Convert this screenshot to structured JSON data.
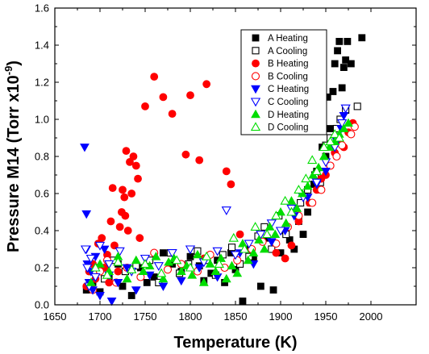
{
  "chart_data": {
    "type": "scatter",
    "title": "",
    "xlabel": "Temperature (K)",
    "ylabel_main": "Pressure M14 (Torr x10",
    "ylabel_exp": "-9",
    "ylabel_close": ")",
    "xlim": [
      1650,
      2050
    ],
    "ylim": [
      0.0,
      1.6
    ],
    "xticks": [
      1650,
      1700,
      1750,
      1800,
      1850,
      1900,
      1950,
      2000
    ],
    "yticks": [
      0.0,
      0.2,
      0.4,
      0.6,
      0.8,
      1.0,
      1.2,
      1.4,
      1.6
    ],
    "ytick_labels": [
      "0.0",
      "0.2",
      "0.4",
      "0.6",
      "0.8",
      "1.0",
      "1.2",
      "1.4",
      "1.6"
    ],
    "grid": false,
    "legend_position": "top-right",
    "series": [
      {
        "name": "A Heating",
        "marker": "square",
        "filled": true,
        "color": "#000000",
        "points": [
          [
            1685,
            0.08
          ],
          [
            1692,
            0.12
          ],
          [
            1700,
            0.07
          ],
          [
            1710,
            0.15
          ],
          [
            1720,
            0.22
          ],
          [
            1725,
            0.1
          ],
          [
            1735,
            0.05
          ],
          [
            1745,
            0.2
          ],
          [
            1752,
            0.12
          ],
          [
            1760,
            0.15
          ],
          [
            1770,
            0.28
          ],
          [
            1780,
            0.22
          ],
          [
            1790,
            0.18
          ],
          [
            1800,
            0.26
          ],
          [
            1810,
            0.21
          ],
          [
            1815,
            0.13
          ],
          [
            1823,
            0.17
          ],
          [
            1830,
            0.24
          ],
          [
            1838,
            0.12
          ],
          [
            1845,
            0.28
          ],
          [
            1850,
            0.19
          ],
          [
            1858,
            0.02
          ],
          [
            1862,
            0.3
          ],
          [
            1870,
            0.25
          ],
          [
            1878,
            0.1
          ],
          [
            1885,
            0.36
          ],
          [
            1892,
            0.08
          ],
          [
            1900,
            0.28
          ],
          [
            1905,
            0.4
          ],
          [
            1910,
            0.35
          ],
          [
            1915,
            0.3
          ],
          [
            1920,
            0.45
          ],
          [
            1925,
            0.38
          ],
          [
            1930,
            0.5
          ],
          [
            1933,
            0.55
          ],
          [
            1937,
            0.65
          ],
          [
            1940,
            0.72
          ],
          [
            1943,
            0.62
          ],
          [
            1946,
            0.85
          ],
          [
            1950,
            0.8
          ],
          [
            1952,
            1.12
          ],
          [
            1955,
            0.95
          ],
          [
            1958,
            1.15
          ],
          [
            1960,
            1.3
          ],
          [
            1963,
            1.37
          ],
          [
            1965,
            1.42
          ],
          [
            1968,
            1.17
          ],
          [
            1970,
            1.28
          ],
          [
            1972,
            1.32
          ],
          [
            1974,
            1.42
          ],
          [
            1978,
            1.3
          ],
          [
            1990,
            1.44
          ]
        ]
      },
      {
        "name": "A Cooling",
        "marker": "square",
        "filled": false,
        "color": "#000000",
        "points": [
          [
            1690,
            0.1
          ],
          [
            1698,
            0.2
          ],
          [
            1705,
            0.14
          ],
          [
            1715,
            0.24
          ],
          [
            1728,
            0.18
          ],
          [
            1740,
            0.21
          ],
          [
            1755,
            0.24
          ],
          [
            1765,
            0.12
          ],
          [
            1778,
            0.28
          ],
          [
            1788,
            0.17
          ],
          [
            1798,
            0.22
          ],
          [
            1808,
            0.29
          ],
          [
            1818,
            0.24
          ],
          [
            1828,
            0.16
          ],
          [
            1836,
            0.27
          ],
          [
            1846,
            0.31
          ],
          [
            1855,
            0.22
          ],
          [
            1865,
            0.26
          ],
          [
            1875,
            0.37
          ],
          [
            1882,
            0.42
          ],
          [
            1890,
            0.3
          ],
          [
            1898,
            0.48
          ],
          [
            1906,
            0.38
          ],
          [
            1914,
            0.52
          ],
          [
            1922,
            0.55
          ],
          [
            1930,
            0.62
          ],
          [
            1938,
            0.7
          ],
          [
            1944,
            0.66
          ],
          [
            1950,
            0.86
          ],
          [
            1955,
            0.9
          ],
          [
            1962,
            0.95
          ],
          [
            1966,
            1.0
          ],
          [
            1972,
            1.05
          ],
          [
            1985,
            1.07
          ]
        ]
      },
      {
        "name": "B Heating",
        "marker": "circle",
        "filled": true,
        "color": "#ff0000",
        "points": [
          [
            1685,
            0.1
          ],
          [
            1688,
            0.18
          ],
          [
            1692,
            0.22
          ],
          [
            1695,
            0.14
          ],
          [
            1698,
            0.33
          ],
          [
            1702,
            0.36
          ],
          [
            1705,
            0.2
          ],
          [
            1708,
            0.27
          ],
          [
            1710,
            0.12
          ],
          [
            1712,
            0.45
          ],
          [
            1714,
            0.63
          ],
          [
            1716,
            0.32
          ],
          [
            1720,
            0.18
          ],
          [
            1722,
            0.42
          ],
          [
            1724,
            0.5
          ],
          [
            1725,
            0.62
          ],
          [
            1727,
            0.58
          ],
          [
            1728,
            0.48
          ],
          [
            1729,
            0.83
          ],
          [
            1731,
            0.4
          ],
          [
            1733,
            0.77
          ],
          [
            1735,
            0.6
          ],
          [
            1737,
            0.8
          ],
          [
            1740,
            0.75
          ],
          [
            1742,
            0.68
          ],
          [
            1744,
            0.36
          ],
          [
            1750,
            1.07
          ],
          [
            1760,
            1.23
          ],
          [
            1770,
            1.12
          ],
          [
            1780,
            1.03
          ],
          [
            1795,
            0.81
          ],
          [
            1800,
            1.13
          ],
          [
            1810,
            0.78
          ],
          [
            1815,
            0.25
          ],
          [
            1818,
            1.19
          ],
          [
            1840,
            0.72
          ],
          [
            1845,
            0.65
          ],
          [
            1855,
            0.38
          ],
          [
            1895,
            0.28
          ],
          [
            1905,
            0.25
          ],
          [
            1912,
            0.32
          ],
          [
            1920,
            0.45
          ],
          [
            1932,
            0.55
          ],
          [
            1940,
            0.62
          ],
          [
            1945,
            0.68
          ],
          [
            1950,
            0.7
          ],
          [
            1955,
            0.75
          ],
          [
            1960,
            0.82
          ],
          [
            1965,
            0.88
          ],
          [
            1970,
            0.85
          ],
          [
            1975,
            0.93
          ],
          [
            1980,
            0.98
          ]
        ]
      },
      {
        "name": "B Cooling",
        "marker": "circle",
        "filled": false,
        "color": "#ff0000",
        "points": [
          [
            1692,
            0.08
          ],
          [
            1700,
            0.18
          ],
          [
            1708,
            0.24
          ],
          [
            1718,
            0.12
          ],
          [
            1730,
            0.2
          ],
          [
            1745,
            0.15
          ],
          [
            1760,
            0.28
          ],
          [
            1775,
            0.19
          ],
          [
            1790,
            0.22
          ],
          [
            1808,
            0.18
          ],
          [
            1822,
            0.27
          ],
          [
            1838,
            0.2
          ],
          [
            1852,
            0.24
          ],
          [
            1868,
            0.3
          ],
          [
            1880,
            0.34
          ],
          [
            1895,
            0.33
          ],
          [
            1908,
            0.42
          ],
          [
            1920,
            0.48
          ],
          [
            1935,
            0.55
          ],
          [
            1945,
            0.62
          ],
          [
            1955,
            0.75
          ],
          [
            1962,
            0.8
          ],
          [
            1968,
            0.86
          ],
          [
            1978,
            0.92
          ],
          [
            1982,
            0.96
          ]
        ]
      },
      {
        "name": "C Heating",
        "marker": "triangle-down",
        "filled": true,
        "color": "#0000ff",
        "points": [
          [
            1683,
            0.85
          ],
          [
            1685,
            0.3
          ],
          [
            1685,
            0.49
          ],
          [
            1686,
            0.22
          ],
          [
            1688,
            0.12
          ],
          [
            1690,
            0.18
          ],
          [
            1692,
            0.08
          ],
          [
            1695,
            0.26
          ],
          [
            1700,
            0.05
          ],
          [
            1705,
            0.3
          ],
          [
            1710,
            0.16
          ],
          [
            1713,
            0.02
          ],
          [
            1720,
            0.12
          ],
          [
            1730,
            0.2
          ],
          [
            1740,
            0.08
          ],
          [
            1755,
            0.16
          ],
          [
            1770,
            0.1
          ],
          [
            1790,
            0.13
          ],
          [
            1810,
            0.2
          ],
          [
            1830,
            0.15
          ],
          [
            1855,
            0.28
          ],
          [
            1870,
            0.22
          ],
          [
            1890,
            0.34
          ],
          [
            1905,
            0.4
          ],
          [
            1915,
            0.48
          ],
          [
            1930,
            0.58
          ],
          [
            1940,
            0.65
          ],
          [
            1950,
            0.72
          ],
          [
            1958,
            0.86
          ],
          [
            1962,
            0.88
          ],
          [
            1967,
            0.95
          ],
          [
            1970,
            1.02
          ]
        ]
      },
      {
        "name": "C Cooling",
        "marker": "triangle-down",
        "filled": false,
        "color": "#0000ff",
        "points": [
          [
            1684,
            0.3
          ],
          [
            1686,
            0.2
          ],
          [
            1688,
            0.1
          ],
          [
            1690,
            0.25
          ],
          [
            1695,
            0.15
          ],
          [
            1700,
            0.32
          ],
          [
            1710,
            0.22
          ],
          [
            1722,
            0.29
          ],
          [
            1735,
            0.18
          ],
          [
            1750,
            0.25
          ],
          [
            1765,
            0.21
          ],
          [
            1780,
            0.28
          ],
          [
            1800,
            0.3
          ],
          [
            1815,
            0.23
          ],
          [
            1830,
            0.29
          ],
          [
            1840,
            0.51
          ],
          [
            1850,
            0.27
          ],
          [
            1865,
            0.33
          ],
          [
            1878,
            0.38
          ],
          [
            1890,
            0.44
          ],
          [
            1900,
            0.4
          ],
          [
            1912,
            0.52
          ],
          [
            1925,
            0.58
          ],
          [
            1940,
            0.66
          ],
          [
            1950,
            0.77
          ],
          [
            1960,
            0.85
          ],
          [
            1968,
            0.98
          ],
          [
            1972,
            1.06
          ]
        ]
      },
      {
        "name": "D Heating",
        "marker": "triangle-up",
        "filled": true,
        "color": "#00dd00",
        "points": [
          [
            1690,
            0.12
          ],
          [
            1700,
            0.22
          ],
          [
            1710,
            0.18
          ],
          [
            1720,
            0.26
          ],
          [
            1730,
            0.14
          ],
          [
            1740,
            0.24
          ],
          [
            1748,
            0.18
          ],
          [
            1755,
            0.21
          ],
          [
            1762,
            0.26
          ],
          [
            1770,
            0.14
          ],
          [
            1776,
            0.23
          ],
          [
            1782,
            0.25
          ],
          [
            1790,
            0.18
          ],
          [
            1796,
            0.21
          ],
          [
            1802,
            0.16
          ],
          [
            1808,
            0.27
          ],
          [
            1815,
            0.12
          ],
          [
            1822,
            0.22
          ],
          [
            1828,
            0.18
          ],
          [
            1834,
            0.25
          ],
          [
            1840,
            0.14
          ],
          [
            1846,
            0.21
          ],
          [
            1852,
            0.17
          ],
          [
            1858,
            0.33
          ],
          [
            1864,
            0.24
          ],
          [
            1870,
            0.28
          ],
          [
            1876,
            0.35
          ],
          [
            1882,
            0.3
          ],
          [
            1888,
            0.42
          ],
          [
            1894,
            0.38
          ],
          [
            1900,
            0.5
          ],
          [
            1906,
            0.44
          ],
          [
            1912,
            0.56
          ],
          [
            1918,
            0.52
          ],
          [
            1924,
            0.6
          ],
          [
            1930,
            0.64
          ],
          [
            1936,
            0.7
          ],
          [
            1942,
            0.74
          ],
          [
            1948,
            0.8
          ],
          [
            1954,
            0.85
          ],
          [
            1960,
            0.88
          ],
          [
            1965,
            0.92
          ],
          [
            1970,
            0.95
          ],
          [
            1975,
            0.98
          ]
        ]
      },
      {
        "name": "D Cooling",
        "marker": "triangle-up",
        "filled": false,
        "color": "#00dd00",
        "points": [
          [
            1695,
            0.2
          ],
          [
            1708,
            0.16
          ],
          [
            1720,
            0.23
          ],
          [
            1735,
            0.19
          ],
          [
            1750,
            0.22
          ],
          [
            1768,
            0.17
          ],
          [
            1785,
            0.24
          ],
          [
            1800,
            0.2
          ],
          [
            1818,
            0.26
          ],
          [
            1832,
            0.22
          ],
          [
            1848,
            0.36
          ],
          [
            1860,
            0.3
          ],
          [
            1872,
            0.42
          ],
          [
            1885,
            0.38
          ],
          [
            1895,
            0.48
          ],
          [
            1905,
            0.56
          ],
          [
            1912,
            0.5
          ],
          [
            1920,
            0.62
          ],
          [
            1928,
            0.68
          ],
          [
            1935,
            0.78
          ],
          [
            1940,
            0.72
          ],
          [
            1948,
            0.85
          ],
          [
            1955,
            0.88
          ],
          [
            1960,
            0.92
          ],
          [
            1965,
            0.9
          ]
        ]
      }
    ]
  }
}
